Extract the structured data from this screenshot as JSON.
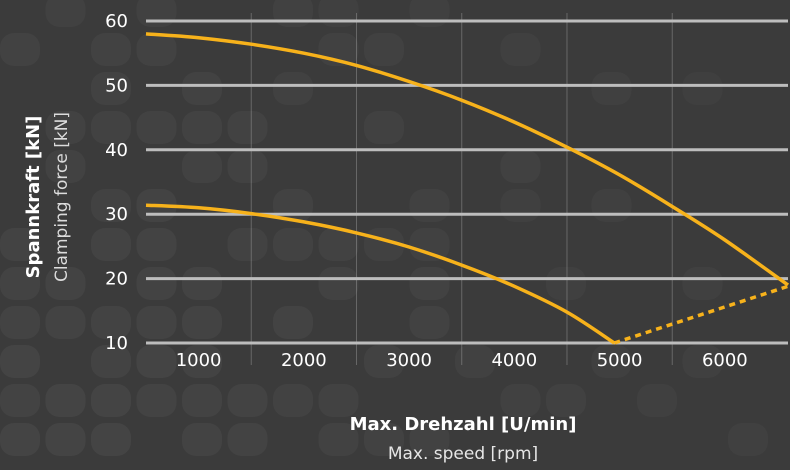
{
  "chart_data": {
    "type": "line",
    "title": "",
    "xlabel": "Max. Drehzahl [U/min]",
    "xlabel_secondary": "Max. speed [rpm]",
    "ylabel": "Spannkraft [kN]",
    "ylabel_secondary": "Clamping force [kN]",
    "xlim": [
      500,
      6600
    ],
    "ylim": [
      10,
      60
    ],
    "x_ticks": [
      1000,
      2000,
      3000,
      4000,
      5000,
      6000
    ],
    "y_ticks": [
      10,
      20,
      30,
      40,
      50,
      60
    ],
    "grid": true,
    "series": [
      {
        "style": "solid",
        "x": [
          500,
          1000,
          1500,
          2000,
          2500,
          3000,
          3500,
          4000,
          4500,
          5000,
          5500,
          6000,
          6600
        ],
        "y": [
          58,
          57.4,
          56.4,
          55,
          53.1,
          50.6,
          47.7,
          44.3,
          40.4,
          36.1,
          31.2,
          26,
          19
        ]
      },
      {
        "style": "solid",
        "x": [
          500,
          1000,
          1500,
          2000,
          2500,
          3000,
          3500,
          4000,
          4500,
          4950
        ],
        "y": [
          31.4,
          31,
          30.1,
          28.8,
          27.1,
          24.9,
          22.1,
          18.8,
          14.8,
          10
        ]
      },
      {
        "style": "dashed",
        "x": [
          4950,
          6600
        ],
        "y": [
          10,
          18.8
        ]
      }
    ]
  },
  "colors": {
    "background": "#3b3b3b",
    "curve": "#f7b21b",
    "grid": "#bdbdbd",
    "dots": "#454545"
  }
}
